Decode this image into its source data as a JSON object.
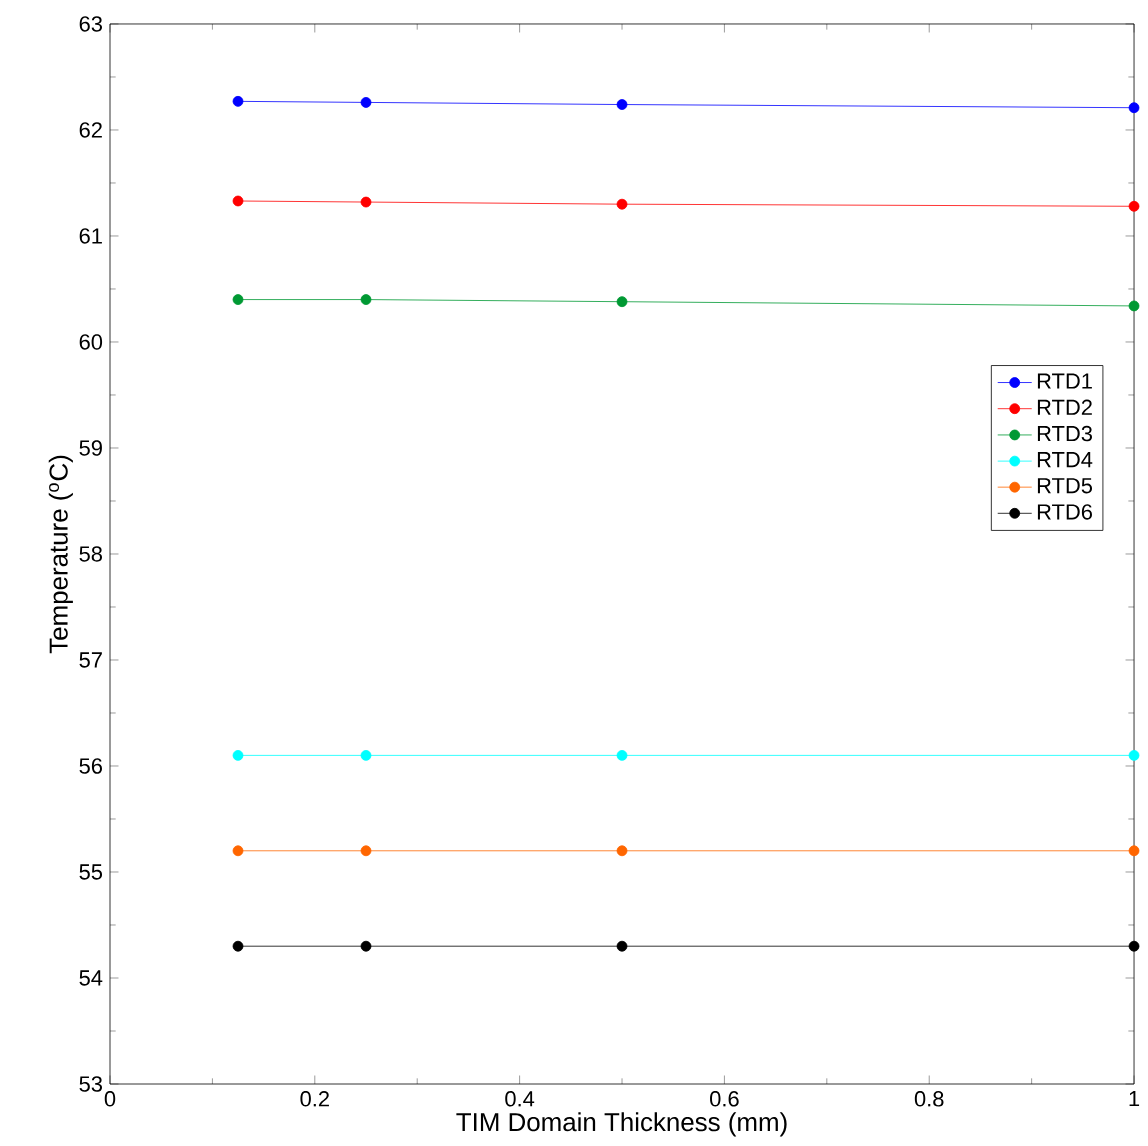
{
  "chart_data": {
    "type": "line",
    "xlabel": "TIM Domain Thickness (mm)",
    "ylabel": "Temperature ($^{o}$C)",
    "x": [
      0.125,
      0.25,
      0.5,
      1
    ],
    "series": [
      {
        "name": "RTD1",
        "color": "#0000ff",
        "values": [
          62.27,
          62.26,
          62.24,
          62.21
        ]
      },
      {
        "name": "RTD2",
        "color": "#ff0000",
        "values": [
          61.33,
          61.32,
          61.3,
          61.28
        ]
      },
      {
        "name": "RTD3",
        "color": "#009933",
        "values": [
          60.4,
          60.4,
          60.38,
          60.34
        ]
      },
      {
        "name": "RTD4",
        "color": "#00ffff",
        "values": [
          56.1,
          56.1,
          56.1,
          56.1
        ]
      },
      {
        "name": "RTD5",
        "color": "#ff6600",
        "values": [
          55.2,
          55.2,
          55.2,
          55.2
        ]
      },
      {
        "name": "RTD6",
        "color": "#000000",
        "values": [
          54.3,
          54.3,
          54.3,
          54.3
        ]
      }
    ],
    "xlim": [
      0,
      1
    ],
    "xticks": [
      0,
      0.2,
      0.4,
      0.6,
      0.8,
      1
    ],
    "ylim": [
      53,
      63
    ],
    "yticks": [
      53,
      54,
      55,
      56,
      57,
      58,
      59,
      60,
      61,
      62,
      63
    ],
    "legend": "right",
    "marker": "circle",
    "line_style": "solid",
    "grid": false
  }
}
